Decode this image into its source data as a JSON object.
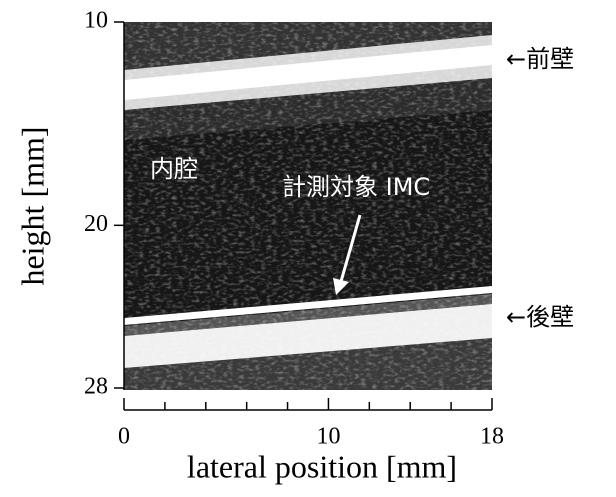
{
  "chart_data": {
    "type": "image",
    "xlabel": "lateral position [mm]",
    "ylabel": "height [mm]",
    "xlim": [
      0,
      18
    ],
    "xticks": [
      0,
      10,
      18
    ],
    "xminorticks": [
      2,
      4,
      6,
      8,
      12,
      14,
      16
    ],
    "ylim": [
      10,
      28
    ],
    "yticks": [
      10,
      20,
      28
    ],
    "annotations": [
      "内腔",
      "計測対象 IMC",
      "←前壁",
      "←後壁"
    ]
  }
}
